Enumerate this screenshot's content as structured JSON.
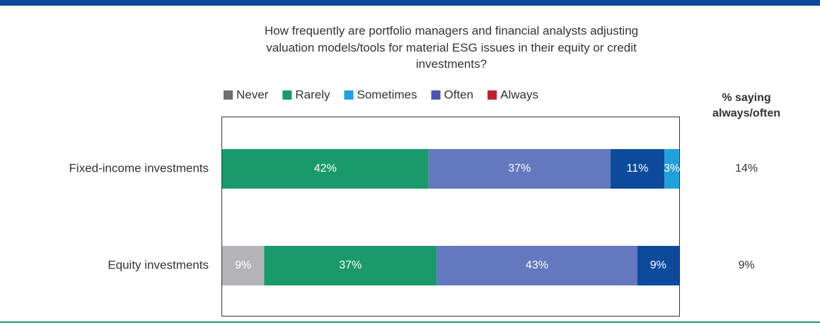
{
  "chart_data": {
    "type": "stacked_bar_horizontal",
    "title": "How frequently are portfolio managers and financial analysts adjusting valuation models/tools for material ESG issues in their equity or credit investments?",
    "categories": [
      "Fixed-income investments",
      "Equity investments"
    ],
    "series": [
      {
        "name": "Never",
        "color": "#b4b4b7",
        "legend_color": "#6d6e71",
        "values": [
          null,
          9
        ],
        "value_labels": [
          null,
          "9%"
        ]
      },
      {
        "name": "Rarely",
        "color": "#1a9a6c",
        "legend_color": "#1a9a6c",
        "values": [
          42,
          37
        ],
        "value_labels": [
          "42%",
          "37%"
        ]
      },
      {
        "name": "Sometimes",
        "color": "#6478bf",
        "legend_color": "#22a0dc",
        "values": [
          37,
          43
        ],
        "value_labels": [
          "37%",
          "43%"
        ]
      },
      {
        "name": "Often",
        "color": "#0d4a9c",
        "legend_color": "#4d55b0",
        "values": [
          11,
          9
        ],
        "value_labels": [
          "11%",
          "9%"
        ]
      },
      {
        "name": "Always",
        "color": "#22a0dc",
        "legend_color": "#c0202e",
        "values": [
          3,
          null
        ],
        "value_labels": [
          "3%",
          null
        ]
      }
    ],
    "summary": {
      "title": "% saying always/often",
      "values": [
        14,
        9
      ],
      "value_labels": [
        "14%",
        "9%"
      ]
    }
  }
}
